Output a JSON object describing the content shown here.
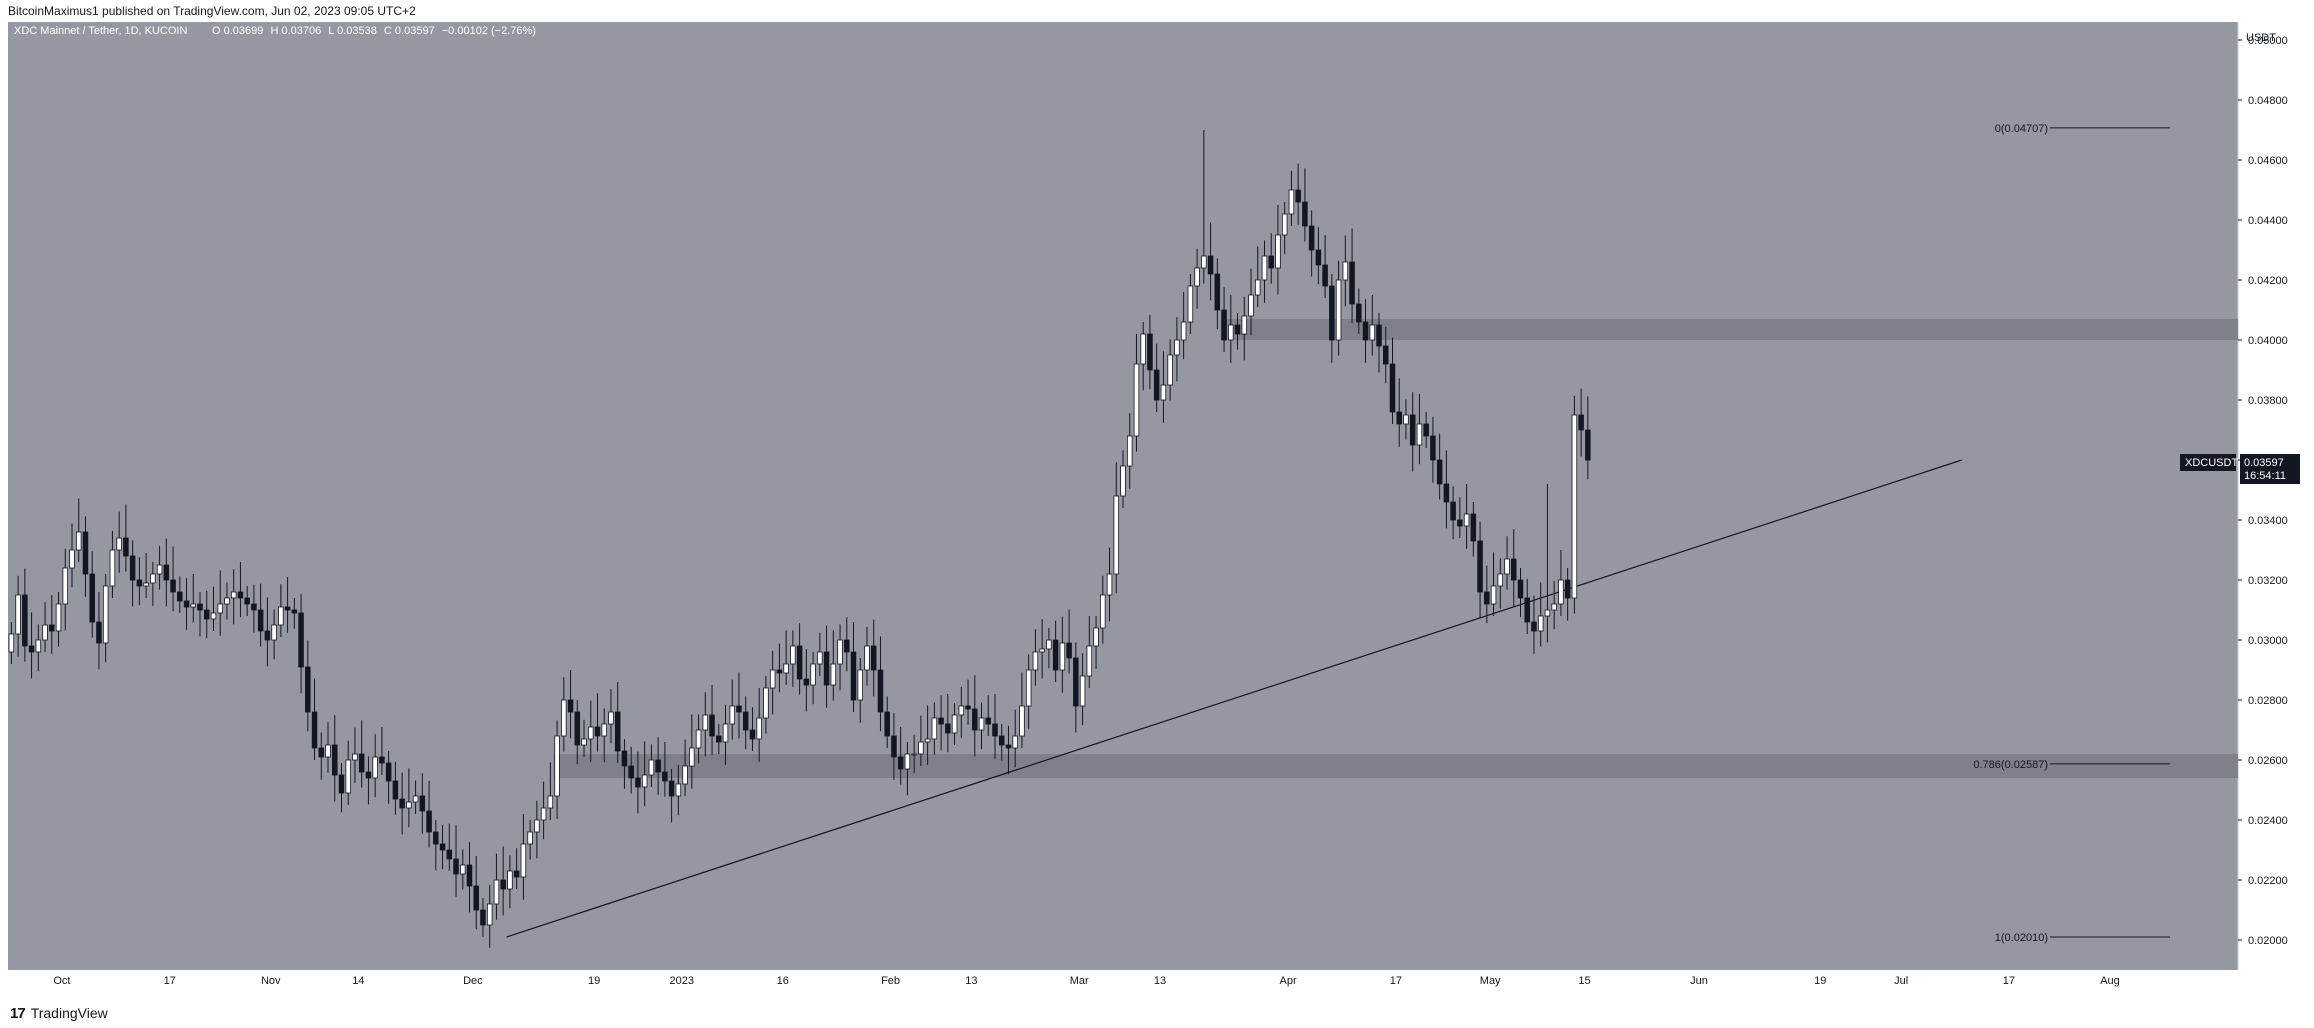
{
  "header": {
    "published_by": "BitcoinMaximus1 published on TradingView.com, Jun 02, 2023 09:05 UTC+2"
  },
  "legend": {
    "symbol_line": "XDC Mainnet / Tether, 1D, KUCOIN",
    "open_label": "O",
    "open": "0.03699",
    "high_label": "H",
    "high": "0.03706",
    "low_label": "L",
    "low": "0.03538",
    "close_label": "C",
    "close": "0.03597",
    "change": "−0.00102 (−2.76%)"
  },
  "price_axis": {
    "currency": "USDT",
    "ticks": [
      "0.05000",
      "0.04800",
      "0.04600",
      "0.04400",
      "0.04200",
      "0.04000",
      "0.03800",
      "0.03600",
      "0.03400",
      "0.03200",
      "0.03000",
      "0.02800",
      "0.02600",
      "0.02400",
      "0.02200",
      "0.02000"
    ]
  },
  "price_badge": {
    "symbol": "XDCUSDT",
    "price": "0.03597",
    "countdown": "16:54:11"
  },
  "time_axis": {
    "labels": [
      "Oct",
      "17",
      "Nov",
      "14",
      "Dec",
      "19",
      "2023",
      "16",
      "Feb",
      "13",
      "Mar",
      "13",
      "Apr",
      "17",
      "May",
      "15",
      "Jun",
      "19",
      "Jul",
      "17",
      "Aug"
    ]
  },
  "footer": {
    "brand": "TradingView",
    "logo_glyph": "17"
  },
  "colors": {
    "background": "#9598a1",
    "candle_up": "#ffffff",
    "candle_down": "#131722",
    "wick": "#131722",
    "zone": "#7a7d86",
    "trendline": "#131722",
    "badge_bg": "#131722"
  },
  "chart_data": {
    "type": "candlestick",
    "interval": "1D",
    "exchange": "KUCOIN",
    "pair": "XDC/USDT",
    "ylim": [
      0.019,
      0.0506
    ],
    "fib_levels": [
      {
        "ratio_label": "0(0.04707)",
        "price": 0.04707
      },
      {
        "ratio_label": "0.786(0.02587)",
        "price": 0.02587
      },
      {
        "ratio_label": "1(0.02010)",
        "price": 0.0201
      }
    ],
    "horizontal_zones": [
      {
        "low": 0.04,
        "high": 0.0407
      },
      {
        "low": 0.0254,
        "high": 0.0262
      }
    ],
    "trendline": {
      "from": {
        "date": "2022-12-06",
        "price": 0.0201
      },
      "to": {
        "date": "2023-07-10",
        "price": 0.036
      }
    },
    "x_range": [
      "2022-09-23",
      "2023-08-20"
    ],
    "candle_closes": [
      0.0302,
      0.0315,
      0.0298,
      0.0296,
      0.03,
      0.0305,
      0.0303,
      0.0312,
      0.0324,
      0.033,
      0.0336,
      0.0322,
      0.0306,
      0.0299,
      0.0318,
      0.033,
      0.0334,
      0.0328,
      0.032,
      0.0318,
      0.0319,
      0.0322,
      0.0325,
      0.032,
      0.0316,
      0.0313,
      0.0311,
      0.0312,
      0.031,
      0.0307,
      0.0309,
      0.0312,
      0.0314,
      0.0316,
      0.0314,
      0.0312,
      0.031,
      0.0303,
      0.03,
      0.0305,
      0.0311,
      0.031,
      0.0309,
      0.0291,
      0.0276,
      0.0264,
      0.0261,
      0.0265,
      0.0255,
      0.0249,
      0.026,
      0.0262,
      0.0256,
      0.0254,
      0.0261,
      0.0259,
      0.0253,
      0.0247,
      0.0244,
      0.0246,
      0.0248,
      0.0243,
      0.0236,
      0.0232,
      0.023,
      0.0227,
      0.0222,
      0.0225,
      0.0218,
      0.021,
      0.0205,
      0.0212,
      0.022,
      0.0217,
      0.0223,
      0.0221,
      0.0232,
      0.0236,
      0.024,
      0.0244,
      0.0248,
      0.0268,
      0.028,
      0.0276,
      0.0265,
      0.0267,
      0.0271,
      0.0268,
      0.0272,
      0.0276,
      0.0263,
      0.0258,
      0.0254,
      0.0251,
      0.0255,
      0.026,
      0.0256,
      0.0253,
      0.0248,
      0.0252,
      0.0258,
      0.0264,
      0.027,
      0.0275,
      0.0268,
      0.0266,
      0.0272,
      0.0278,
      0.0276,
      0.027,
      0.0267,
      0.0274,
      0.0284,
      0.029,
      0.0289,
      0.0292,
      0.0298,
      0.0287,
      0.0285,
      0.0292,
      0.0296,
      0.0285,
      0.0292,
      0.03,
      0.0296,
      0.028,
      0.029,
      0.0298,
      0.029,
      0.0276,
      0.0268,
      0.0261,
      0.0257,
      0.0262,
      0.0262,
      0.0266,
      0.0267,
      0.0274,
      0.0272,
      0.0269,
      0.0275,
      0.0278,
      0.0277,
      0.027,
      0.0274,
      0.0272,
      0.0268,
      0.0265,
      0.0264,
      0.0268,
      0.0278,
      0.029,
      0.0296,
      0.0297,
      0.03,
      0.029,
      0.0299,
      0.0294,
      0.0278,
      0.0288,
      0.0298,
      0.0304,
      0.0315,
      0.0322,
      0.0348,
      0.0358,
      0.0368,
      0.0392,
      0.0402,
      0.039,
      0.038,
      0.0385,
      0.0395,
      0.04,
      0.0406,
      0.0418,
      0.0424,
      0.0428,
      0.0422,
      0.041,
      0.04,
      0.0405,
      0.0402,
      0.0408,
      0.0415,
      0.042,
      0.0428,
      0.0424,
      0.0435,
      0.0442,
      0.045,
      0.0446,
      0.0438,
      0.043,
      0.0425,
      0.0418,
      0.04,
      0.042,
      0.0426,
      0.0412,
      0.0406,
      0.04,
      0.0405,
      0.0398,
      0.0392,
      0.0376,
      0.0372,
      0.0375,
      0.0365,
      0.0372,
      0.0368,
      0.036,
      0.0352,
      0.0346,
      0.034,
      0.0338,
      0.0342,
      0.0333,
      0.0316,
      0.0312,
      0.0318,
      0.0322,
      0.0327,
      0.032,
      0.0314,
      0.0306,
      0.0303,
      0.0308,
      0.031,
      0.0312,
      0.032,
      0.0314,
      0.0375,
      0.037,
      0.036
    ]
  }
}
